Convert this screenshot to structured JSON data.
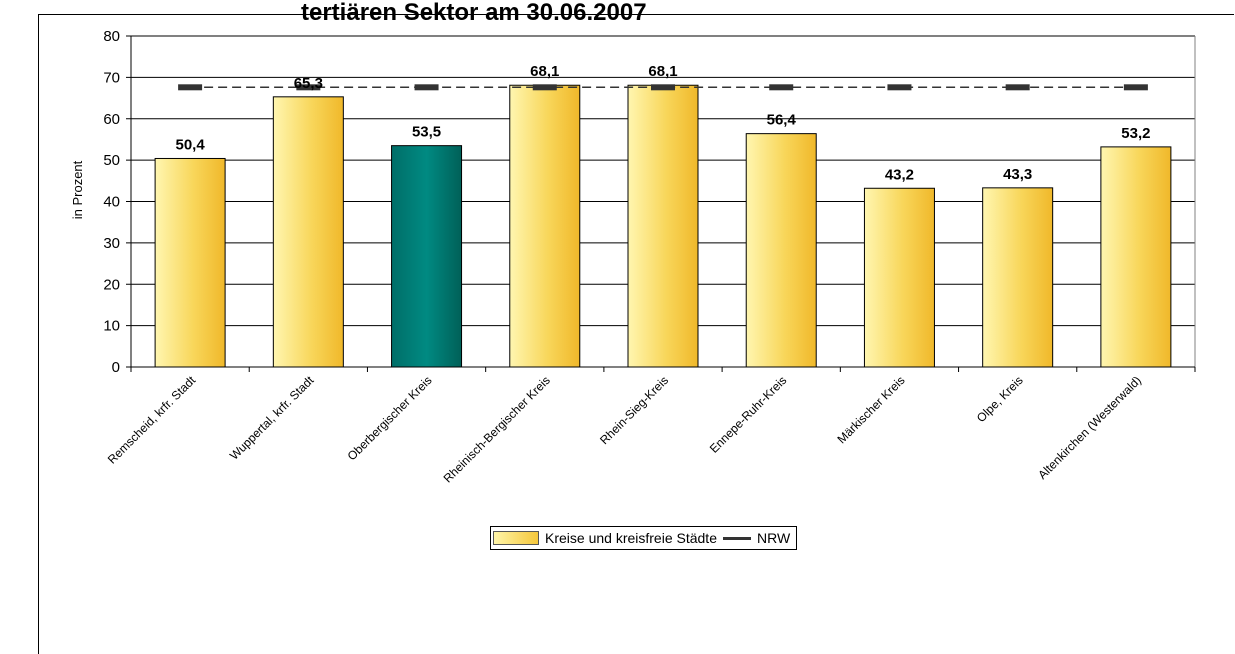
{
  "chart_data": {
    "type": "bar",
    "title": "tertiären Sektor am 30.06.2007",
    "ylabel": "in Prozent",
    "xlabel": "",
    "ylim": [
      0,
      80
    ],
    "yticks": [
      "0",
      "10",
      "20",
      "30",
      "40",
      "50",
      "60",
      "70",
      "80"
    ],
    "grid": true,
    "categories": [
      "Remscheid, krfr. Stadt",
      "Wuppertal, krfr. Stadt",
      "Oberbergischer Kreis",
      "Rheinisch-Bergischer Kreis",
      "Rhein-Sieg-Kreis",
      "Ennepe-Ruhr-Kreis",
      "Märkischer Kreis",
      "Olpe, Kreis",
      "Altenkirchen (Westerwald)"
    ],
    "series": [
      {
        "name": "Kreise und kreisfreie Städte",
        "values": [
          50.4,
          65.3,
          53.5,
          68.1,
          68.1,
          56.4,
          43.2,
          43.3,
          53.2
        ],
        "labels": [
          "50,4",
          "65,3",
          "53,5",
          "68,1",
          "68,1",
          "56,4",
          "43,2",
          "43,3",
          "53,2"
        ],
        "color": "#f5c73a",
        "highlight_index": 2,
        "highlight_color": "#007a73"
      },
      {
        "name": "NRW",
        "type": "line",
        "style": "dashed",
        "values": [
          67.6,
          67.6,
          67.6,
          67.6,
          67.6,
          67.6,
          67.6,
          67.6,
          67.6
        ],
        "color": "#333333"
      }
    ],
    "legend_position": "bottom-center"
  },
  "legend": {
    "bars_label": "Kreise und kreisfreie Städte",
    "line_label": "NRW"
  }
}
